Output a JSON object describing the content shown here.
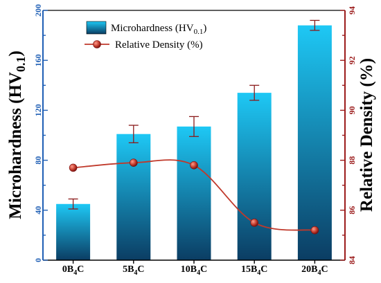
{
  "chart_data": {
    "type": "bar",
    "categories": [
      {
        "pre": "0B",
        "sub": "4",
        "post": "C"
      },
      {
        "pre": "5B",
        "sub": "4",
        "post": "C"
      },
      {
        "pre": "10B",
        "sub": "4",
        "post": "C"
      },
      {
        "pre": "15B",
        "sub": "4",
        "post": "C"
      },
      {
        "pre": "20B",
        "sub": "4",
        "post": "C"
      }
    ],
    "series": [
      {
        "name_pre": "Microhardness (HV",
        "name_sub": "0.1",
        "name_post": ")",
        "type": "bar",
        "axis": "left",
        "values": [
          45,
          101,
          107,
          134,
          188
        ],
        "errors": [
          4,
          7,
          8,
          6,
          4
        ]
      },
      {
        "name": "Relative Density (%)",
        "type": "line",
        "axis": "right",
        "values": [
          87.7,
          87.9,
          87.8,
          85.5,
          85.2
        ],
        "errors": [
          0,
          0,
          0,
          0,
          0
        ]
      }
    ],
    "y_left": {
      "label_pre": "Microhardness (HV",
      "label_sub": "0.1",
      "label_post": ")",
      "range": [
        0,
        200
      ],
      "ticks": [
        0,
        40,
        80,
        120,
        160,
        200
      ],
      "minor_step": 20
    },
    "y_right": {
      "label": "Relative Density (%)",
      "range": [
        84,
        94
      ],
      "ticks": [
        84,
        86,
        88,
        90,
        92,
        94
      ],
      "minor_step": 1
    },
    "colors": {
      "bar_top": "#1ec8f5",
      "bar_bottom": "#0b3d63",
      "left_axis": "#1f5fb5",
      "right_axis": "#9b1b1b",
      "line": "#c0392b",
      "marker": "#c0392b",
      "error": "#8b1a1a"
    },
    "grid": false,
    "legend_position": "top-left"
  }
}
